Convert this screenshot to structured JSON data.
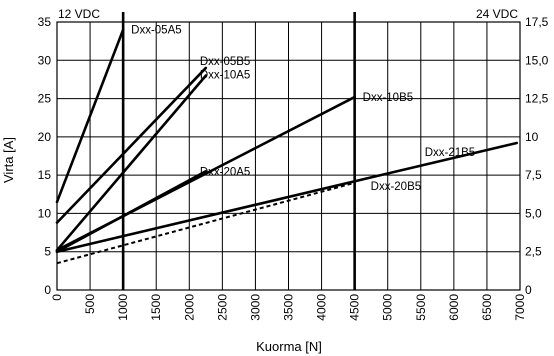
{
  "chart_data": {
    "type": "line",
    "xlabel": "Kuorma [N]",
    "ylabel": "Virta [A]",
    "left_axis_label": "12 VDC",
    "right_axis_label": "24 VDC",
    "xlim": [
      0,
      7000
    ],
    "ylim_left": [
      0,
      35
    ],
    "ylim_right": [
      0,
      17.5
    ],
    "grid": true,
    "x_ticks": [
      "0",
      "500",
      "1000",
      "1500",
      "2000",
      "2500",
      "3000",
      "3500",
      "4000",
      "4500",
      "5000",
      "5500",
      "6000",
      "6500",
      "7000"
    ],
    "y_ticks_left": [
      "0",
      "5",
      "10",
      "15",
      "20",
      "25",
      "30",
      "35"
    ],
    "y_ticks_right": [
      "0",
      "2,5",
      "5,0",
      "7,5",
      "10",
      "12,5",
      "15,0",
      "17,5"
    ],
    "emphasized_x": [
      1000,
      4500
    ],
    "series": [
      {
        "name": "Dxx-05A5",
        "style": "solid",
        "x": [
          0,
          1000
        ],
        "y": [
          11.5,
          34
        ]
      },
      {
        "name": "Dxx-05B5",
        "style": "solid",
        "x": [
          0,
          2250
        ],
        "y": [
          8.8,
          29
        ]
      },
      {
        "name": "Dxx-10A5",
        "style": "solid",
        "x": [
          0,
          2250
        ],
        "y": [
          5.2,
          28
        ]
      },
      {
        "name": "Dxx-10B5",
        "style": "solid",
        "x": [
          0,
          4500
        ],
        "y": [
          5.2,
          25.2
        ]
      },
      {
        "name": "Dxx-20A5",
        "style": "solid",
        "x": [
          0,
          2250
        ],
        "y": [
          5.0,
          15.5
        ]
      },
      {
        "name": "Dxx-21B5",
        "style": "solid",
        "x": [
          0,
          6950
        ],
        "y": [
          5.0,
          19.2
        ]
      },
      {
        "name": "Dxx-20B5",
        "style": "dotted",
        "x": [
          0,
          4500
        ],
        "y": [
          3.5,
          14.0
        ]
      }
    ]
  }
}
